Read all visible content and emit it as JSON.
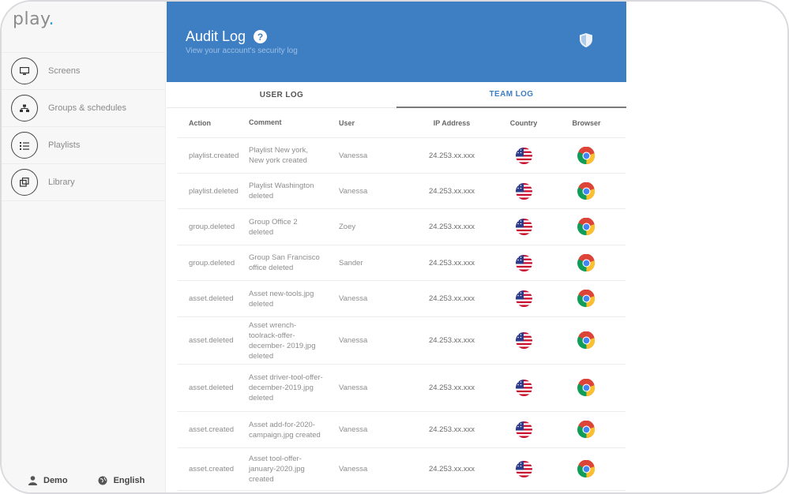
{
  "app": {
    "logo": "play",
    "logo_dot": "."
  },
  "sidebar": {
    "items": [
      {
        "label": "Screens",
        "icon": "monitor-icon"
      },
      {
        "label": "Groups & schedules",
        "icon": "groups-icon"
      },
      {
        "label": "Playlists",
        "icon": "playlist-icon"
      },
      {
        "label": "Library",
        "icon": "library-icon"
      }
    ],
    "footer": {
      "user": "Demo",
      "language": "English"
    }
  },
  "header": {
    "title": "Audit Log",
    "help": "?",
    "subtitle": "View your account's security log",
    "color": "#3e7fc4"
  },
  "tabs": [
    {
      "label": "USER LOG",
      "active": false
    },
    {
      "label": "TEAM LOG",
      "active": true
    }
  ],
  "table": {
    "columns": [
      "Action",
      "Comment",
      "User",
      "IP Address",
      "Country",
      "Browser"
    ],
    "rows": [
      {
        "action": "playlist.created",
        "comment": "Playlist New york, New york created",
        "user": "Vanessa",
        "ip": "24.253.xx.xxx",
        "country": "us-flag-icon",
        "browser": "chrome-icon"
      },
      {
        "action": "playlist.deleted",
        "comment": "Playlist Washington deleted",
        "user": "Vanessa",
        "ip": "24.253.xx.xxx",
        "country": "us-flag-icon",
        "browser": "chrome-icon"
      },
      {
        "action": "group.deleted",
        "comment": "Group Office 2 deleted",
        "user": "Zoey",
        "ip": "24.253.xx.xxx",
        "country": "us-flag-icon",
        "browser": "chrome-icon"
      },
      {
        "action": "group.deleted",
        "comment": "Group San Francisco office deleted",
        "user": "Sander",
        "ip": "24.253.xx.xxx",
        "country": "us-flag-icon",
        "browser": "chrome-icon"
      },
      {
        "action": "asset.deleted",
        "comment": "Asset new-tools.jpg deleted",
        "user": "Vanessa",
        "ip": "24.253.xx.xxx",
        "country": "us-flag-icon",
        "browser": "chrome-icon"
      },
      {
        "action": "asset.deleted",
        "comment": "Asset wrench-toolrack-offer-december- 2019.jpg deleted",
        "user": "Vanessa",
        "ip": "24.253.xx.xxx",
        "country": "us-flag-icon",
        "browser": "chrome-icon"
      },
      {
        "action": "asset.deleted",
        "comment": "Asset driver-tool-offer-december-2019.jpg deleted",
        "user": "Vanessa",
        "ip": "24.253.xx.xxx",
        "country": "us-flag-icon",
        "browser": "chrome-icon"
      },
      {
        "action": "asset.created",
        "comment": "Asset add-for-2020-campaign.jpg created",
        "user": "Vanessa",
        "ip": "24.253.xx.xxx",
        "country": "us-flag-icon",
        "browser": "chrome-icon"
      },
      {
        "action": "asset.created",
        "comment": "Asset tool-offer-january-2020.jpg created",
        "user": "Vanessa",
        "ip": "24.253.xx.xxx",
        "country": "us-flag-icon",
        "browser": "chrome-icon"
      }
    ]
  }
}
